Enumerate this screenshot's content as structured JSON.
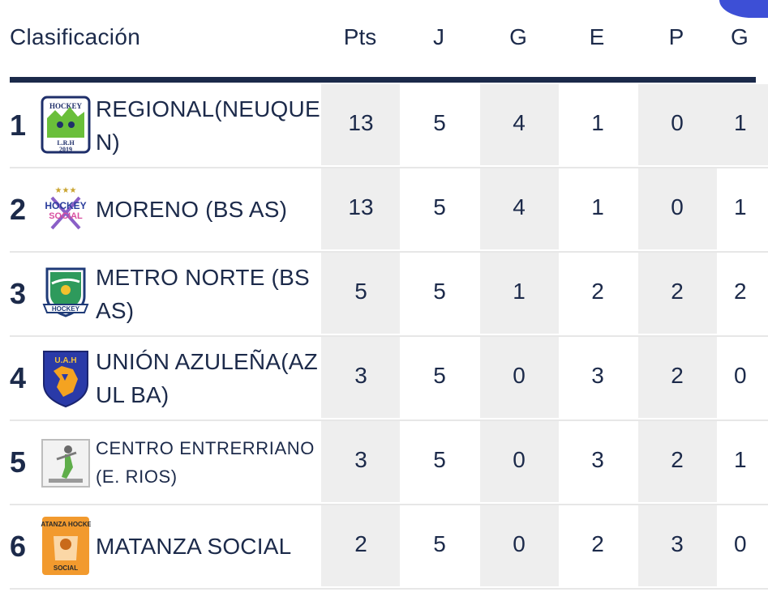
{
  "header": {
    "title": "Clasificación",
    "columns": [
      "Pts",
      "J",
      "G",
      "E",
      "P",
      "G"
    ]
  },
  "rows": [
    {
      "pos": "1",
      "team": "REGIONAL(NEUQUEN)",
      "logo": "lrh-hockey-2019-logo",
      "stats": [
        "13",
        "5",
        "4",
        "1",
        "0",
        "1"
      ]
    },
    {
      "pos": "2",
      "team": "MORENO (BS AS)",
      "logo": "hockey-social-logo",
      "stats": [
        "13",
        "5",
        "4",
        "1",
        "0",
        "1"
      ]
    },
    {
      "pos": "3",
      "team": "METRO NORTE (BS AS)",
      "logo": "metro-norte-hockey-shield-logo",
      "stats": [
        "5",
        "5",
        "1",
        "2",
        "2",
        "2"
      ]
    },
    {
      "pos": "4",
      "team": "UNIÓN AZULEÑA(AZUL BA)",
      "logo": "uah-shield-logo",
      "stats": [
        "3",
        "5",
        "0",
        "3",
        "2",
        "0"
      ]
    },
    {
      "pos": "5",
      "team": "CENTRO ENTRERRIANO (E. RIOS)",
      "logo": "centro-entrerriano-logo",
      "stats": [
        "3",
        "5",
        "0",
        "3",
        "2",
        "1"
      ]
    },
    {
      "pos": "6",
      "team": "MATANZA SOCIAL",
      "logo": "matanza-hockey-social-logo",
      "stats": [
        "2",
        "5",
        "0",
        "2",
        "3",
        "0"
      ]
    }
  ],
  "colors": {
    "text": "#1c2a4a",
    "header_line": "#1b2a4a",
    "shade": "#eeeeee",
    "accent": "#3d4fd6"
  }
}
